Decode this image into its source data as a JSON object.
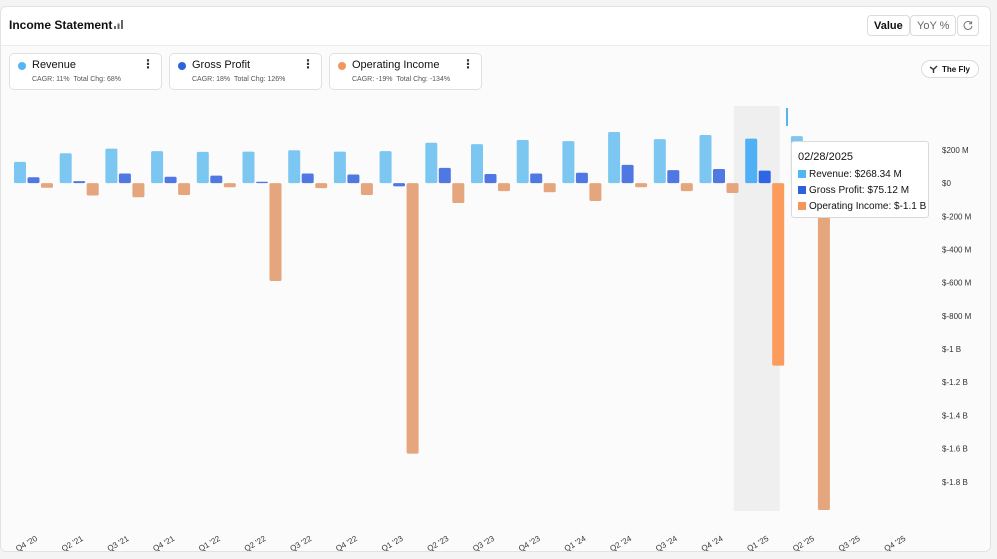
{
  "header": {
    "title": "Income Statement",
    "title_icon": "bar-signal-icon",
    "toggle_value": "Value",
    "toggle_yoy": "YoY %",
    "refresh_icon": "refresh-icon"
  },
  "legend": [
    {
      "name": "Revenue",
      "cagr": "CAGR: 11%",
      "total": "Total Chg: 68%",
      "color": "#52b6f5",
      "menu": "⋮"
    },
    {
      "name": "Gross Profit",
      "cagr": "CAGR: 18%",
      "total": "Total Chg: 126%",
      "color": "#2b63dd",
      "menu": "⋮"
    },
    {
      "name": "Operating Income",
      "cagr": "CAGR: -19%",
      "total": "Total Chg: -134%",
      "color": "#f4955c",
      "menu": "⋮"
    }
  ],
  "source": {
    "label": "The Fly",
    "icon": "fly-logo-icon"
  },
  "tooltip": {
    "date": "02/28/2025",
    "revenue": "Revenue: $268.34 M",
    "gross_profit": "Gross Profit: $75.12 M",
    "operating_income": "Operating Income: $-1.1 B"
  },
  "chart_data": {
    "type": "bar",
    "categories": [
      "Q4 '20",
      "Q2 '21",
      "Q3 '21",
      "Q4 '21",
      "Q1 '22",
      "Q2 '22",
      "Q3 '22",
      "Q4 '22",
      "Q1 '23",
      "Q2 '23",
      "Q3 '23",
      "Q4 '23",
      "Q1 '24",
      "Q2 '24",
      "Q3 '24",
      "Q4 '24",
      "Q1 '25",
      "Q2 '25",
      "Q3 '25",
      "Q4 '25"
    ],
    "series": [
      {
        "name": "Revenue",
        "color": "#7cc7f2",
        "unit": "$M",
        "values": [
          128,
          180,
          208,
          193,
          188,
          190,
          198,
          190,
          193,
          243,
          235,
          260,
          253,
          308,
          265,
          290,
          268.34,
          283,
          null,
          null
        ]
      },
      {
        "name": "Gross Profit",
        "color": "#5078e3",
        "unit": "$M",
        "values": [
          35,
          12,
          58,
          38,
          45,
          8,
          58,
          52,
          -20,
          92,
          55,
          58,
          62,
          110,
          78,
          85,
          75.12,
          70,
          null,
          null
        ]
      },
      {
        "name": "Operating Income",
        "color": "#e5a57d",
        "unit": "$M",
        "values": [
          -28,
          -75,
          -85,
          -72,
          -25,
          -590,
          -30,
          -72,
          -1630,
          -120,
          -48,
          -55,
          -108,
          -25,
          -48,
          -60,
          -1100,
          -1970,
          null,
          null
        ]
      }
    ],
    "highlight_index": 16,
    "highlight_colors": [
      "#4fb0f6",
      "#2f66e6",
      "#fb9b5e"
    ],
    "y_ticks": [
      {
        "value": 200,
        "label": "$200 M"
      },
      {
        "value": 0,
        "label": "$0"
      },
      {
        "value": -200,
        "label": "$-200 M"
      },
      {
        "value": -400,
        "label": "$-400 M"
      },
      {
        "value": -600,
        "label": "$-600 M"
      },
      {
        "value": -800,
        "label": "$-800 M"
      },
      {
        "value": -1000,
        "label": "$-1 B"
      },
      {
        "value": -1200,
        "label": "$-1.2 B"
      },
      {
        "value": -1400,
        "label": "$-1.4 B"
      },
      {
        "value": -1600,
        "label": "$-1.6 B"
      },
      {
        "value": -1800,
        "label": "$-1.8 B"
      }
    ],
    "ylim": [
      -1970,
      320
    ],
    "grid": false,
    "legend_position": "top-left"
  }
}
